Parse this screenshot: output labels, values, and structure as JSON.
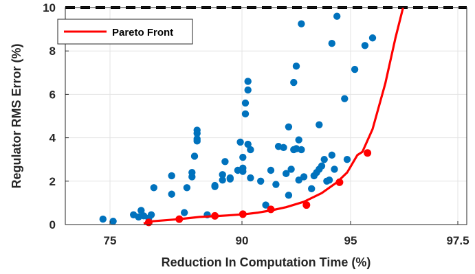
{
  "chart_data": {
    "type": "scatter",
    "xlabel": "Reduction In Computation Time (%)",
    "ylabel": "Regulator RMS Error (%)",
    "x_ticks": [
      "75",
      "90",
      "95",
      "97.5"
    ],
    "y_ticks": [
      "0",
      "2",
      "4",
      "6",
      "8",
      "10"
    ],
    "ylim": [
      0,
      10
    ],
    "grid": true,
    "legend": {
      "location": "top-left",
      "entries": [
        "Pareto Front"
      ]
    },
    "reference_line": {
      "y": 10,
      "style": "dashed",
      "color": "#000000"
    },
    "colors": {
      "scatter": "#0072BD",
      "pareto": "#FF0000"
    },
    "series": [
      {
        "kind": "scatter",
        "points": [
          [
            -4.6,
            0.25
          ],
          [
            -4.2,
            0.15
          ],
          [
            -3.4,
            0.45
          ],
          [
            -3.2,
            0.35
          ],
          [
            -3.1,
            0.65
          ],
          [
            -3.0,
            0.4
          ],
          [
            -2.8,
            0.3
          ],
          [
            -2.7,
            0.45
          ],
          [
            -2.6,
            1.7
          ],
          [
            -1.9,
            2.25
          ],
          [
            -1.9,
            1.4
          ],
          [
            -1.4,
            0.55
          ],
          [
            -1.3,
            1.7
          ],
          [
            -1.1,
            2.2
          ],
          [
            -1.1,
            2.4
          ],
          [
            -1.0,
            3.15
          ],
          [
            -0.9,
            3.95
          ],
          [
            -0.9,
            4.2
          ],
          [
            -0.9,
            4.35
          ],
          [
            -0.9,
            3.85
          ],
          [
            -0.5,
            0.45
          ],
          [
            -0.2,
            1.8
          ],
          [
            -0.2,
            1.75
          ],
          [
            0.1,
            2.3
          ],
          [
            0.1,
            2.05
          ],
          [
            0.2,
            2.9
          ],
          [
            0.4,
            2.1
          ],
          [
            0.4,
            2.15
          ],
          [
            0.7,
            2.5
          ],
          [
            0.8,
            3.8
          ],
          [
            0.9,
            2.6
          ],
          [
            0.9,
            2.45
          ],
          [
            0.9,
            3.1
          ],
          [
            1.0,
            5.1
          ],
          [
            1.0,
            5.6
          ],
          [
            1.1,
            6.6
          ],
          [
            1.1,
            6.2
          ],
          [
            1.1,
            3.7
          ],
          [
            1.2,
            3.45
          ],
          [
            1.2,
            2.15
          ],
          [
            1.6,
            2.0
          ],
          [
            1.8,
            0.9
          ],
          [
            2.0,
            2.5
          ],
          [
            2.2,
            1.85
          ],
          [
            2.3,
            3.6
          ],
          [
            2.5,
            3.55
          ],
          [
            2.6,
            2.35
          ],
          [
            2.7,
            4.5
          ],
          [
            2.7,
            1.35
          ],
          [
            2.8,
            2.55
          ],
          [
            2.9,
            3.45
          ],
          [
            2.9,
            6.55
          ],
          [
            3.0,
            7.3
          ],
          [
            3.0,
            3.5
          ],
          [
            3.1,
            3.9
          ],
          [
            3.1,
            2.05
          ],
          [
            3.2,
            9.25
          ],
          [
            3.2,
            3.45
          ],
          [
            3.3,
            2.2
          ],
          [
            3.6,
            1.65
          ],
          [
            3.7,
            2.25
          ],
          [
            3.8,
            2.4
          ],
          [
            3.9,
            2.55
          ],
          [
            3.9,
            4.6
          ],
          [
            4.0,
            2.7
          ],
          [
            4.1,
            3.0
          ],
          [
            4.2,
            2.0
          ],
          [
            4.3,
            2.05
          ],
          [
            4.4,
            3.2
          ],
          [
            4.4,
            8.35
          ],
          [
            4.5,
            2.55
          ],
          [
            4.6,
            9.6
          ],
          [
            4.9,
            5.8
          ],
          [
            5.0,
            3.0
          ],
          [
            5.3,
            7.15
          ],
          [
            5.7,
            8.25
          ],
          [
            6.0,
            8.6
          ]
        ]
      },
      {
        "name": "Pareto Front",
        "kind": "line",
        "points": [
          [
            -3.0,
            0.05
          ],
          [
            -2.7,
            0.15
          ],
          [
            -1.6,
            0.25
          ],
          [
            -0.8,
            0.35
          ],
          [
            0.0,
            0.4
          ],
          [
            0.3,
            0.42
          ],
          [
            1.0,
            0.48
          ],
          [
            1.5,
            0.55
          ],
          [
            2.0,
            0.65
          ],
          [
            2.6,
            0.8
          ],
          [
            3.3,
            1.05
          ],
          [
            4.0,
            1.45
          ],
          [
            4.6,
            1.95
          ],
          [
            5.0,
            2.4
          ],
          [
            5.4,
            3.2
          ],
          [
            5.6,
            3.35
          ],
          [
            6.0,
            4.4
          ],
          [
            6.5,
            6.5
          ],
          [
            6.9,
            8.6
          ],
          [
            7.2,
            10.0
          ]
        ],
        "markers": [
          [
            -2.8,
            0.1
          ],
          [
            -1.6,
            0.25
          ],
          [
            -0.2,
            0.4
          ],
          [
            0.9,
            0.48
          ],
          [
            2.0,
            0.7
          ],
          [
            3.4,
            0.9
          ],
          [
            4.7,
            1.95
          ],
          [
            5.8,
            3.3
          ]
        ]
      }
    ]
  }
}
